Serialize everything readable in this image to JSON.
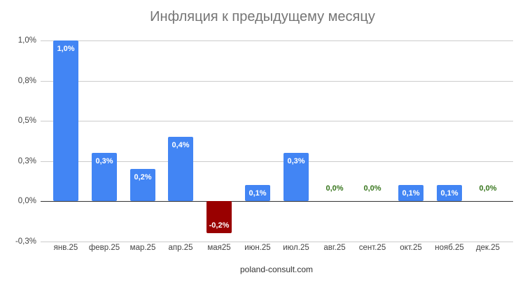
{
  "chart_data": {
    "type": "bar",
    "title": "Инфляция к предыдущему месяцу",
    "xlabel": "",
    "ylabel": "",
    "categories": [
      "янв.25",
      "февр.25",
      "мар.25",
      "апр.25",
      "мая25",
      "июн.25",
      "июл.25",
      "авг.25",
      "сент.25",
      "окт.25",
      "нояб.25",
      "дек.25"
    ],
    "values": [
      1.0,
      0.3,
      0.2,
      0.4,
      -0.2,
      0.1,
      0.3,
      0.0,
      0.0,
      0.1,
      0.1,
      0.0
    ],
    "value_labels": [
      "1,0%",
      "0,3%",
      "0,2%",
      "0,4%",
      "-0,2%",
      "0,1%",
      "0,3%",
      "0,0%",
      "0,0%",
      "0,1%",
      "0,1%",
      "0,0%"
    ],
    "ylim": [
      -0.25,
      1.0
    ],
    "yticks": [
      {
        "value": 1.0,
        "label": "1,0%"
      },
      {
        "value": 0.75,
        "label": "0,8%"
      },
      {
        "value": 0.5,
        "label": "0,5%"
      },
      {
        "value": 0.25,
        "label": "0,3%"
      },
      {
        "value": 0.0,
        "label": "0,0%"
      },
      {
        "value": -0.25,
        "label": "-0,3%"
      }
    ],
    "grid": true,
    "legend": "none",
    "annotation": "poland-consult.com",
    "colors": {
      "positive": "#4285f4",
      "negative": "#990000",
      "zero_label": "#38761d",
      "label_on_bar": "#ffffff",
      "title": "#757575"
    }
  },
  "title": "Инфляция к предыдущему месяцу",
  "footer": "poland-consult.com"
}
